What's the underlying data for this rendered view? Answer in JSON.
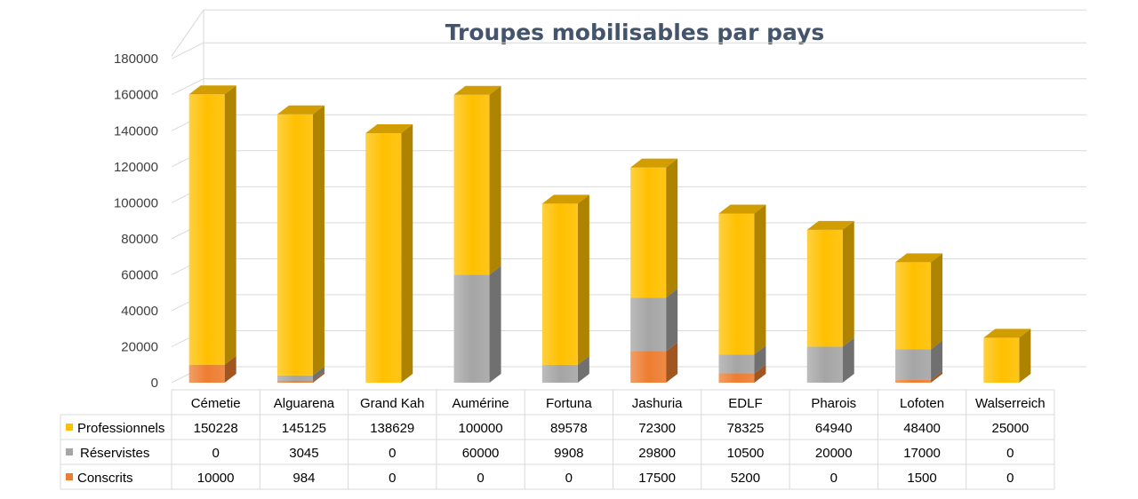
{
  "chart_data": {
    "type": "bar",
    "stacked": true,
    "title": "Troupes mobilisables par pays",
    "categories": [
      "Cémetie",
      "Alguarena",
      "Grand Kah",
      "Aumérine",
      "Fortuna",
      "Jashuria",
      "EDLF",
      "Pharois",
      "Lofoten",
      "Walserreich"
    ],
    "series": [
      {
        "name": "Professionnels",
        "color": "#ffc000",
        "values": [
          150228,
          145125,
          138629,
          100000,
          89578,
          72300,
          78325,
          64940,
          48400,
          25000
        ]
      },
      {
        "name": "Réservistes",
        "color": "#a5a5a5",
        "values": [
          0,
          3045,
          0,
          60000,
          9908,
          29800,
          10500,
          20000,
          17000,
          0
        ]
      },
      {
        "name": "Conscrits",
        "color": "#ed7d31",
        "values": [
          10000,
          984,
          0,
          0,
          0,
          17500,
          5200,
          0,
          1500,
          0
        ]
      }
    ],
    "yticks": [
      0,
      20000,
      40000,
      60000,
      80000,
      100000,
      120000,
      140000,
      160000,
      180000
    ],
    "ylim": [
      0,
      180000
    ],
    "grid": true,
    "legend": "data-table"
  }
}
